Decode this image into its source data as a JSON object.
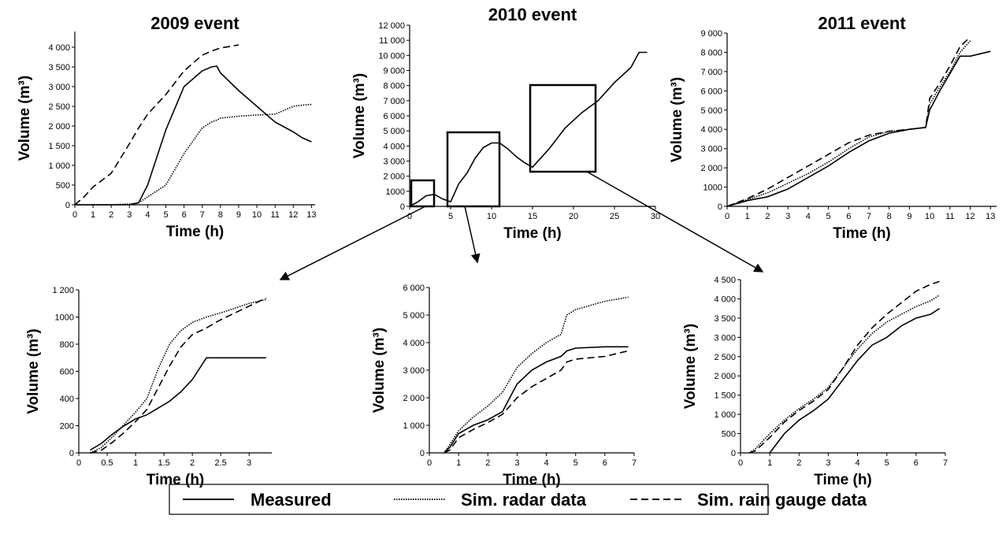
{
  "chart_data": [
    {
      "type": "line",
      "title": "2009 event",
      "xlabel": "Time (h)",
      "ylabel": "Volume (m³)",
      "x": [
        0,
        0.5,
        1,
        2,
        3,
        3.5,
        4,
        5,
        6,
        7,
        7.5,
        7.8,
        8,
        9,
        10,
        11,
        12,
        12.5,
        13
      ],
      "series": [
        {
          "name": "Measured",
          "color": "#000000",
          "dash": "solid",
          "values": [
            0,
            0,
            0,
            0,
            0,
            50,
            500,
            1900,
            3000,
            3400,
            3500,
            3520,
            3350,
            2900,
            2500,
            2100,
            1850,
            1700,
            1600
          ]
        },
        {
          "name": "Sim. radar data",
          "color": "#000000",
          "dash": "dotted",
          "values": [
            0,
            0,
            0,
            0,
            20,
            50,
            200,
            500,
            1300,
            1950,
            2100,
            2150,
            2200,
            2250,
            2280,
            2300,
            2500,
            2530,
            2550
          ]
        },
        {
          "name": "Sim. rain gauge data",
          "color": "#000000",
          "dash": "dashed",
          "values": [
            0,
            200,
            450,
            800,
            1550,
            1950,
            2300,
            2800,
            3400,
            3800,
            3900,
            3950,
            3980,
            4060,
            null,
            null,
            null,
            null,
            null
          ]
        }
      ],
      "xlim": [
        0,
        13.2
      ],
      "xticks": [
        0,
        1,
        2,
        3,
        4,
        5,
        6,
        7,
        8,
        9,
        10,
        11,
        12,
        13
      ],
      "ylim": [
        0,
        4400
      ],
      "yticks": [
        0,
        500,
        {
          "value": 1000,
          "label": "1 000"
        },
        {
          "value": 1500,
          "label": "1 500"
        },
        {
          "value": 2000,
          "label": "2 000"
        },
        {
          "value": 2500,
          "label": "2 500"
        },
        {
          "value": 3000,
          "label": "3 000"
        },
        {
          "value": 3500,
          "label": "3 500"
        },
        {
          "value": 4000,
          "label": "4 000"
        }
      ]
    },
    {
      "type": "line",
      "title": "2010 event",
      "xlabel": "Time (h)",
      "ylabel": "Volume (m³)",
      "x": [
        0,
        1,
        2,
        3,
        4,
        5,
        6,
        7,
        8,
        9,
        10,
        11,
        12,
        13,
        14,
        15,
        17,
        19,
        21,
        23,
        25,
        27,
        28,
        29
      ],
      "series": [
        {
          "name": "Measured",
          "color": "#000000",
          "dash": "solid",
          "values": [
            0,
            300,
            700,
            800,
            500,
            300,
            1500,
            2200,
            3200,
            3900,
            4200,
            4200,
            3800,
            3300,
            2900,
            2600,
            3800,
            5200,
            6200,
            7000,
            8200,
            9200,
            10200,
            10200
          ]
        }
      ],
      "xlim": [
        0,
        30
      ],
      "xticks": [
        0,
        5,
        10,
        15,
        20,
        25,
        30
      ],
      "ylim": [
        0,
        12000
      ],
      "yticks": [
        0,
        1000,
        {
          "value": 2000,
          "label": "2 000"
        },
        {
          "value": 3000,
          "label": "3 000"
        },
        {
          "value": 4000,
          "label": "4 000"
        },
        {
          "value": 5000,
          "label": "5 000"
        },
        {
          "value": 6000,
          "label": "6 000"
        },
        {
          "value": 7000,
          "label": "7 000"
        },
        {
          "value": 8000,
          "label": "8 000"
        },
        {
          "value": 9000,
          "label": "9 000"
        },
        {
          "value": 10000,
          "label": "10 000"
        },
        {
          "value": 11000,
          "label": "11 000"
        },
        {
          "value": 12000,
          "label": "12 000"
        }
      ]
    },
    {
      "type": "line",
      "title": "2011 event",
      "xlabel": "Time (h)",
      "ylabel": "Volume (m³)",
      "x": [
        0,
        1,
        2,
        3,
        4,
        5,
        6,
        7,
        8,
        9,
        9.8,
        10,
        10.5,
        11,
        11.5,
        12,
        13
      ],
      "series": [
        {
          "name": "Measured",
          "color": "#000000",
          "dash": "solid",
          "values": [
            0,
            300,
            500,
            900,
            1500,
            2100,
            2800,
            3400,
            3800,
            4000,
            4100,
            5000,
            6000,
            6900,
            7800,
            7800,
            8050
          ]
        },
        {
          "name": "Sim. radar data",
          "color": "#000000",
          "dash": "dotted",
          "values": [
            0,
            350,
            700,
            1200,
            1700,
            2300,
            3000,
            3600,
            3900,
            4000,
            4100,
            5300,
            6200,
            7000,
            8000,
            8600,
            null
          ]
        },
        {
          "name": "Sim. rain gauge data",
          "color": "#000000",
          "dash": "dashed",
          "values": [
            0,
            400,
            900,
            1500,
            2100,
            2700,
            3300,
            3700,
            3900,
            4000,
            4100,
            5600,
            6400,
            7300,
            8300,
            8800,
            null
          ]
        }
      ],
      "xlim": [
        0,
        13.3
      ],
      "xticks": [
        0,
        1,
        2,
        3,
        4,
        5,
        6,
        7,
        8,
        9,
        10,
        11,
        12,
        13
      ],
      "ylim": [
        0,
        9000
      ],
      "yticks": [
        0,
        1000,
        {
          "value": 2000,
          "label": "2 000"
        },
        {
          "value": 3000,
          "label": "3 000"
        },
        {
          "value": 4000,
          "label": "4 000"
        },
        {
          "value": 5000,
          "label": "5 000"
        },
        {
          "value": 6000,
          "label": "6 000"
        },
        {
          "value": 7000,
          "label": "7 000"
        },
        {
          "value": 8000,
          "label": "8 000"
        },
        {
          "value": 9000,
          "label": "9 000"
        }
      ]
    },
    {
      "type": "line",
      "xlabel": "Time (h)",
      "ylabel": "Volume (m³)",
      "x": [
        0.2,
        0.4,
        0.6,
        0.8,
        1,
        1.2,
        1.4,
        1.6,
        1.8,
        2,
        2.25,
        2.5,
        3,
        3.3
      ],
      "series": [
        {
          "name": "Measured",
          "color": "#000000",
          "dash": "solid",
          "values": [
            20,
            70,
            140,
            200,
            250,
            280,
            330,
            380,
            450,
            540,
            700,
            700,
            700,
            700
          ]
        },
        {
          "name": "Sim. radar data",
          "color": "#000000",
          "dash": "dotted",
          "values": [
            0,
            40,
            120,
            210,
            300,
            400,
            620,
            800,
            900,
            960,
            1000,
            1030,
            1100,
            1130
          ]
        },
        {
          "name": "Sim. rain gauge data",
          "color": "#000000",
          "dash": "dashed",
          "values": [
            0,
            20,
            80,
            150,
            230,
            320,
            480,
            640,
            780,
            870,
            920,
            980,
            1080,
            1140
          ]
        }
      ],
      "xlim": [
        0,
        3.4
      ],
      "xticks": [
        0,
        0.5,
        1,
        1.5,
        2,
        2.5,
        3
      ],
      "ylim": [
        0,
        1200
      ],
      "yticks": [
        0,
        200,
        400,
        600,
        800,
        1000,
        {
          "value": 1200,
          "label": "1 200"
        }
      ]
    },
    {
      "type": "line",
      "xlabel": "Time (h)",
      "ylabel": "Volume (m³)",
      "x": [
        0.5,
        0.7,
        1,
        1.5,
        2,
        2.5,
        3,
        3.5,
        4,
        4.5,
        4.7,
        5,
        6,
        6.8
      ],
      "series": [
        {
          "name": "Measured",
          "color": "#000000",
          "dash": "solid",
          "values": [
            0,
            200,
            700,
            1000,
            1200,
            1500,
            2500,
            3000,
            3300,
            3500,
            3700,
            3800,
            3850,
            3850
          ]
        },
        {
          "name": "Sim. radar data",
          "color": "#000000",
          "dash": "dotted",
          "values": [
            0,
            300,
            800,
            1300,
            1700,
            2200,
            3100,
            3600,
            4000,
            4300,
            5000,
            5200,
            5500,
            5650
          ]
        },
        {
          "name": "Sim. rain gauge data",
          "color": "#000000",
          "dash": "dashed",
          "values": [
            0,
            100,
            550,
            850,
            1100,
            1400,
            2000,
            2400,
            2700,
            3000,
            3300,
            3400,
            3500,
            3700
          ]
        }
      ],
      "xlim": [
        0,
        7
      ],
      "xticks": [
        0,
        1,
        2,
        3,
        4,
        5,
        6,
        7
      ],
      "ylim": [
        0,
        6000
      ],
      "yticks": [
        0,
        {
          "value": 1000,
          "label": "1 000"
        },
        {
          "value": 2000,
          "label": "2 000"
        },
        {
          "value": 3000,
          "label": "3 000"
        },
        {
          "value": 4000,
          "label": "4 000"
        },
        {
          "value": 5000,
          "label": "5 000"
        },
        {
          "value": 6000,
          "label": "6 000"
        }
      ]
    },
    {
      "type": "line",
      "xlabel": "Time (h)",
      "ylabel": "Volume (m³)",
      "x": [
        0.3,
        0.5,
        1,
        1.5,
        2,
        2.5,
        3,
        3.5,
        4,
        4.5,
        5,
        5.5,
        6,
        6.5,
        6.8
      ],
      "series": [
        {
          "name": "Measured",
          "color": "#000000",
          "dash": "solid",
          "values": [
            null,
            null,
            0,
            500,
            850,
            1100,
            1400,
            1900,
            2400,
            2800,
            3000,
            3300,
            3500,
            3600,
            3750
          ]
        },
        {
          "name": "Sim. radar data",
          "color": "#000000",
          "dash": "dotted",
          "values": [
            0,
            100,
            500,
            850,
            1150,
            1400,
            1700,
            2200,
            2700,
            3100,
            3400,
            3600,
            3800,
            3950,
            4100
          ]
        },
        {
          "name": "Sim. rain gauge data",
          "color": "#000000",
          "dash": "dashed",
          "values": [
            0,
            50,
            400,
            800,
            1100,
            1350,
            1650,
            2200,
            2800,
            3250,
            3600,
            3900,
            4200,
            4380,
            4450
          ]
        }
      ],
      "xlim": [
        0,
        7
      ],
      "xticks": [
        0,
        1,
        2,
        3,
        4,
        5,
        6,
        7
      ],
      "ylim": [
        0,
        4500
      ],
      "yticks": [
        0,
        500,
        {
          "value": 1000,
          "label": "1 000"
        },
        {
          "value": 1500,
          "label": "1 500"
        },
        {
          "value": 2000,
          "label": "2 000"
        },
        {
          "value": 2500,
          "label": "2 500"
        },
        {
          "value": 3000,
          "label": "3 000"
        },
        {
          "value": 3500,
          "label": "3 500"
        },
        {
          "value": 4000,
          "label": "4 000"
        },
        {
          "value": 4500,
          "label": "4 500"
        }
      ]
    }
  ]
}
